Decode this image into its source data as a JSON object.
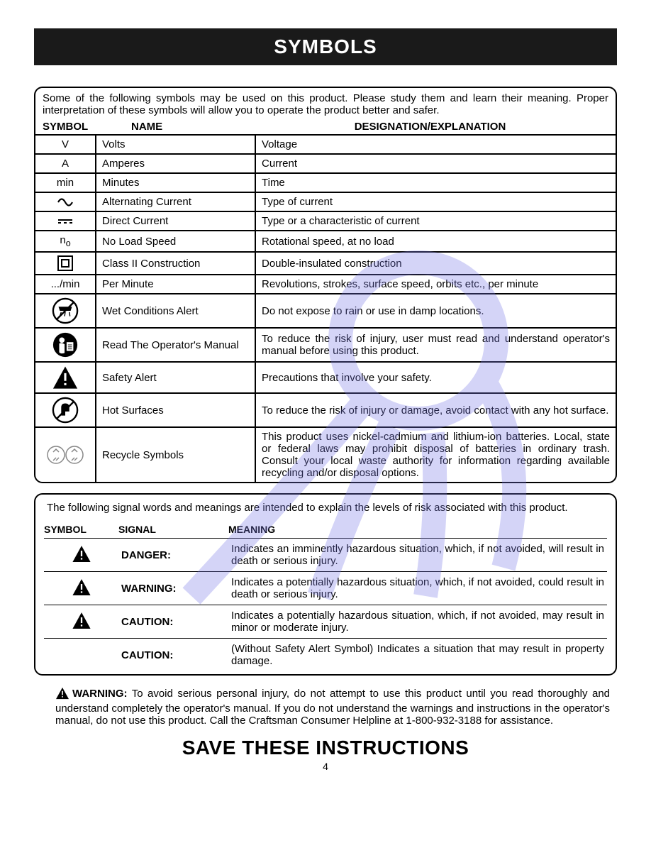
{
  "title": "SYMBOLS",
  "watermark_color": "#7a7ae8",
  "symbols_table": {
    "intro": "Some of the following symbols may be used on this product. Please study them and learn their meaning. Proper interpretation of these symbols will allow you to operate the product better and safer.",
    "headers": {
      "col1": "SYMBOL",
      "col2": "NAME",
      "col3": "DESIGNATION/EXPLANATION"
    },
    "rows": [
      {
        "sym_text": "V",
        "name": "Volts",
        "expl": "Voltage",
        "tall": false
      },
      {
        "sym_text": "A",
        "name": "Amperes",
        "expl": "Current",
        "tall": false
      },
      {
        "sym_text": "min",
        "name": "Minutes",
        "expl": "Time",
        "tall": false
      },
      {
        "sym_svg": "ac",
        "name": "Alternating Current",
        "expl": "Type of current",
        "tall": false
      },
      {
        "sym_svg": "dc",
        "name": "Direct Current",
        "expl": "Type or a characteristic of current",
        "tall": false
      },
      {
        "sym_html": "n<sub>o</sub>",
        "name": "No Load Speed",
        "expl": "Rotational speed, at no load",
        "tall": true
      },
      {
        "sym_svg": "class2",
        "name": "Class II Construction",
        "expl": "Double-insulated construction",
        "tall": false
      },
      {
        "sym_text": ".../min",
        "name": "Per Minute",
        "expl": "Revolutions, strokes, surface speed, orbits etc., per minute",
        "tall": false
      },
      {
        "sym_svg": "wet",
        "name": "Wet Conditions Alert",
        "expl": "Do not expose to rain or use in damp locations.",
        "tall": true
      },
      {
        "sym_svg": "manual",
        "name": "Read The Operator's Manual",
        "expl": "To reduce the risk of injury, user must read and understand operator's manual before using this product.",
        "tall": true
      },
      {
        "sym_svg": "alert",
        "name": "Safety Alert",
        "expl": "Precautions that involve your safety.",
        "tall": true
      },
      {
        "sym_svg": "hot",
        "name": "Hot Surfaces",
        "expl": "To reduce the risk of injury or damage, avoid contact with any hot surface.",
        "tall": true
      },
      {
        "sym_svg": "recycle",
        "name": "Recycle Symbols",
        "expl": "This product uses nickel-cadmium and lithium-ion batteries. Local, state or federal laws may prohibit disposal of batteries in ordinary trash. Consult your local waste authority for information regarding available recycling and/or disposal options.",
        "tall": true
      }
    ]
  },
  "signal_table": {
    "intro": "The following signal words and meanings are intended to explain the levels of risk associated with this product.",
    "headers": {
      "col1": "SYMBOL",
      "col2": "SIGNAL",
      "col3": "MEANING"
    },
    "rows": [
      {
        "has_tri": true,
        "signal": "DANGER:",
        "meaning": "Indicates an imminently hazardous situation, which, if not avoided, will result in death or serious injury."
      },
      {
        "has_tri": true,
        "signal": "WARNING:",
        "meaning": "Indicates a potentially hazardous situation, which, if not avoided, could result in death or serious injury."
      },
      {
        "has_tri": true,
        "signal": "CAUTION:",
        "meaning": "Indicates a potentially hazardous situation, which, if not avoided, may result in minor or moderate injury."
      },
      {
        "has_tri": false,
        "signal": "CAUTION:",
        "meaning": "(Without Safety Alert Symbol) Indicates a situation that may result in property damage."
      }
    ]
  },
  "warning_block": {
    "label": "WARNING:",
    "text": " To avoid serious personal injury, do not attempt to use this product until you read thoroughly and understand completely the operator's manual. If you do not understand the warnings and instructions in the opera­tor's manual, do not use this product. Call the Craftsman Consumer Helpline at 1-800-932-3188 for assistance."
  },
  "save_line": "SAVE THESE INSTRUCTIONS",
  "page_number": "4"
}
